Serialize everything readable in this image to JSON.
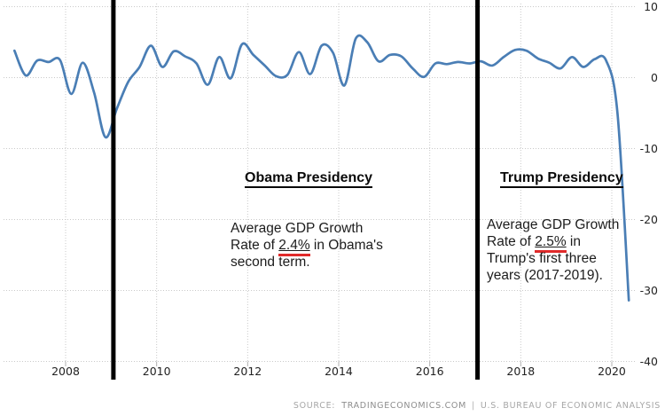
{
  "colors": {
    "line": "#4a7eb5",
    "grid": "#c9c9c9",
    "tick": "#b0b0b0",
    "event_line": "#000000",
    "axis_text": "#222222",
    "red_underline": "#e02a2a",
    "background": "#ffffff"
  },
  "chart_data": {
    "type": "line",
    "title": "",
    "xlabel": "",
    "ylabel": "",
    "grid": "dotted",
    "legend": "none",
    "ylim": [
      -40,
      10
    ],
    "xlim": [
      2006.6,
      2020.6
    ],
    "x_ticks": [
      2008,
      2010,
      2012,
      2014,
      2016,
      2018,
      2020
    ],
    "x_tick_labels": [
      "2008",
      "2010",
      "2012",
      "2014",
      "2016",
      "2018",
      "2020"
    ],
    "y_ticks": [
      10,
      0,
      -10,
      -20,
      -30,
      -40
    ],
    "y_tick_labels": [
      "10",
      "0",
      "-10",
      "-20",
      "-30",
      "-40"
    ],
    "series": [
      {
        "name": "quarterly-gdp-growth-rate-percent",
        "periods": [
          "2006 Q4",
          "2007 Q1",
          "2007 Q2",
          "2007 Q3",
          "2007 Q4",
          "2008 Q1",
          "2008 Q2",
          "2008 Q3",
          "2008 Q4",
          "2009 Q1",
          "2009 Q2",
          "2009 Q3",
          "2009 Q4",
          "2010 Q1",
          "2010 Q2",
          "2010 Q3",
          "2010 Q4",
          "2011 Q1",
          "2011 Q2",
          "2011 Q3",
          "2011 Q4",
          "2012 Q1",
          "2012 Q2",
          "2012 Q3",
          "2012 Q4",
          "2013 Q1",
          "2013 Q2",
          "2013 Q3",
          "2013 Q4",
          "2014 Q1",
          "2014 Q2",
          "2014 Q3",
          "2014 Q4",
          "2015 Q1",
          "2015 Q2",
          "2015 Q3",
          "2015 Q4",
          "2016 Q1",
          "2016 Q2",
          "2016 Q3",
          "2016 Q4",
          "2017 Q1",
          "2017 Q2",
          "2017 Q3",
          "2017 Q4",
          "2018 Q1",
          "2018 Q2",
          "2018 Q3",
          "2018 Q4",
          "2019 Q1",
          "2019 Q2",
          "2019 Q3",
          "2019 Q4",
          "2020 Q1",
          "2020 Q2"
        ],
        "values": [
          3.8,
          0.3,
          2.4,
          2.2,
          2.5,
          -2.3,
          2.1,
          -2.1,
          -8.4,
          -4.4,
          -0.6,
          1.5,
          4.5,
          1.5,
          3.7,
          3.0,
          2.0,
          -1.0,
          2.9,
          -0.1,
          4.7,
          3.2,
          1.7,
          0.2,
          0.4,
          3.6,
          0.5,
          4.5,
          3.5,
          -1.1,
          5.5,
          5.0,
          2.3,
          3.2,
          3.0,
          1.3,
          0.1,
          2.0,
          1.9,
          2.2,
          2.0,
          2.3,
          1.7,
          2.9,
          3.9,
          3.8,
          2.7,
          2.1,
          1.3,
          2.9,
          1.5,
          2.6,
          2.4,
          -5.0,
          -31.4
        ]
      }
    ],
    "events": [
      {
        "id": "obama-start",
        "t": 2009.05
      },
      {
        "id": "trump-start",
        "t": 2017.05
      }
    ]
  },
  "annotations": {
    "obama": {
      "title": "Obama Presidency",
      "line1": "Average GDP Growth",
      "line2_prefix": "Rate of ",
      "line2_value": "2.4%",
      "line2_suffix": " in Obama's",
      "line3": "second term."
    },
    "trump": {
      "title": "Trump Presidency",
      "line1": "Average GDP Growth",
      "line2_prefix": "Rate of ",
      "line2_value": "2.5%",
      "line2_suffix": " in",
      "line3": "Trump's first three",
      "line4": "years (2017-2019)."
    }
  },
  "source": {
    "label": "SOURCE:",
    "link": "TRADINGECONOMICS.COM",
    "separator": "|",
    "attribution": "U.S. BUREAU OF ECONOMIC ANALYSIS"
  }
}
